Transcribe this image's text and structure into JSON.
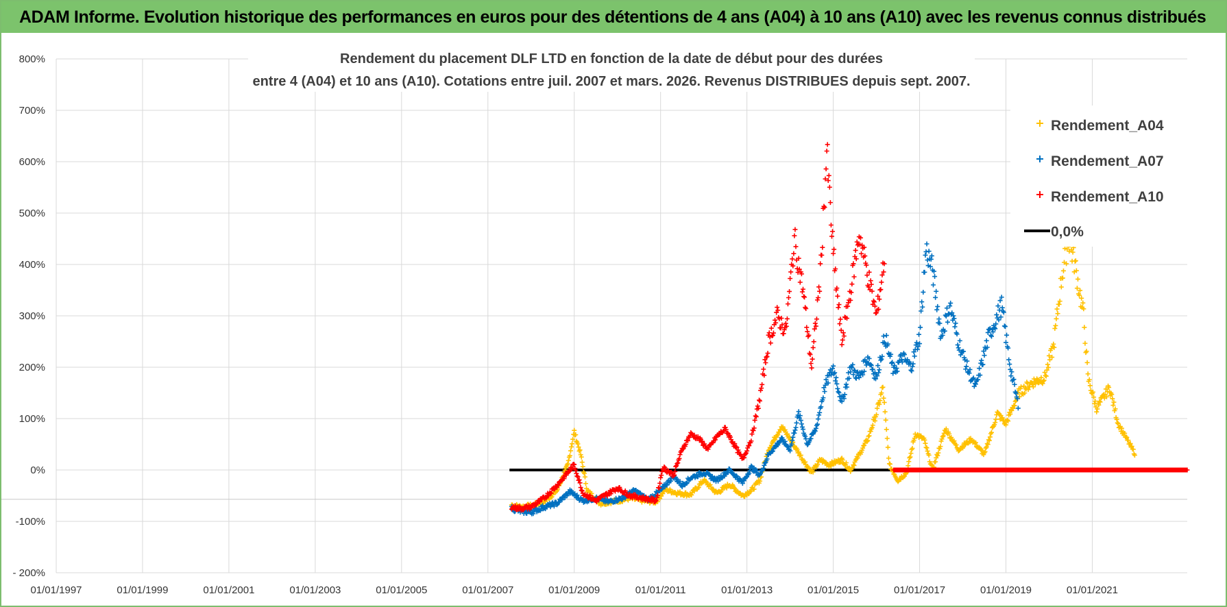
{
  "banner": {
    "text": "ADAM Informe. Evolution historique des performances en euros pour des détentions de 4 ans (A04) à 10 ans (A10) avec les revenus connus distribués"
  },
  "colors": {
    "banner_bg": "#7cc36c",
    "A04": "#ffc000",
    "A07": "#0070c0",
    "A10": "#ff0000",
    "zero": "#000000",
    "grid": "#d9d9d9"
  },
  "chart_data": {
    "type": "scatter",
    "title_line1": "Rendement du placement DLF LTD en fonction de la date de début pour des durées",
    "title_line2": "entre 4 (A04) et 10 ans (A10).  Cotations entre juil. 2007 et mars. 2026. Revenus DISTRIBUES depuis sept. 2007.",
    "y_ticks": [
      "800%",
      "700%",
      "600%",
      "500%",
      "400%",
      "300%",
      "200%",
      "100%",
      "0%",
      "-100%",
      "- 200%"
    ],
    "ylim": [
      -200,
      800
    ],
    "x_ticks": [
      "01/01/1997",
      "01/01/1999",
      "01/01/2001",
      "01/01/2003",
      "01/01/2005",
      "01/01/2007",
      "01/01/2009",
      "01/01/2011",
      "01/01/2013",
      "01/01/2015",
      "01/01/2017",
      "01/01/2019",
      "01/01/2021"
    ],
    "xlim": [
      1997.0,
      2023.2
    ],
    "legend_position": "top-right",
    "series": [
      {
        "name": "Rendement_A04",
        "points": [
          [
            2007.55,
            -68
          ],
          [
            2007.75,
            -72
          ],
          [
            2008.0,
            -70
          ],
          [
            2008.3,
            -62
          ],
          [
            2008.6,
            -40
          ],
          [
            2008.85,
            10
          ],
          [
            2009.0,
            75
          ],
          [
            2009.15,
            30
          ],
          [
            2009.3,
            -40
          ],
          [
            2009.6,
            -65
          ],
          [
            2010.0,
            -60
          ],
          [
            2010.3,
            -55
          ],
          [
            2010.6,
            -60
          ],
          [
            2010.9,
            -62
          ],
          [
            2011.1,
            -38
          ],
          [
            2011.4,
            -45
          ],
          [
            2011.7,
            -48
          ],
          [
            2012.0,
            -20
          ],
          [
            2012.3,
            -45
          ],
          [
            2012.6,
            -28
          ],
          [
            2012.9,
            -50
          ],
          [
            2013.1,
            -40
          ],
          [
            2013.3,
            -20
          ],
          [
            2013.5,
            40
          ],
          [
            2013.8,
            85
          ],
          [
            2014.0,
            60
          ],
          [
            2014.3,
            20
          ],
          [
            2014.5,
            -5
          ],
          [
            2014.7,
            20
          ],
          [
            2014.9,
            10
          ],
          [
            2015.2,
            20
          ],
          [
            2015.4,
            0
          ],
          [
            2015.6,
            30
          ],
          [
            2015.8,
            60
          ],
          [
            2016.0,
            110
          ],
          [
            2016.15,
            160
          ],
          [
            2016.3,
            10
          ],
          [
            2016.5,
            -20
          ],
          [
            2016.7,
            -5
          ],
          [
            2016.9,
            70
          ],
          [
            2017.1,
            60
          ],
          [
            2017.3,
            0
          ],
          [
            2017.6,
            80
          ],
          [
            2017.9,
            40
          ],
          [
            2018.2,
            60
          ],
          [
            2018.5,
            30
          ],
          [
            2018.8,
            110
          ],
          [
            2019.0,
            90
          ],
          [
            2019.3,
            150
          ],
          [
            2019.6,
            170
          ],
          [
            2019.9,
            180
          ],
          [
            2020.1,
            240
          ],
          [
            2020.3,
            380
          ],
          [
            2020.45,
            450
          ],
          [
            2020.6,
            400
          ],
          [
            2020.8,
            300
          ],
          [
            2020.9,
            180
          ],
          [
            2021.1,
            120
          ],
          [
            2021.4,
            160
          ],
          [
            2021.6,
            90
          ],
          [
            2021.8,
            60
          ],
          [
            2022.0,
            30
          ]
        ]
      },
      {
        "name": "Rendement_A07",
        "points": [
          [
            2007.55,
            -75
          ],
          [
            2007.75,
            -80
          ],
          [
            2008.0,
            -82
          ],
          [
            2008.3,
            -72
          ],
          [
            2008.6,
            -65
          ],
          [
            2008.9,
            -42
          ],
          [
            2009.2,
            -60
          ],
          [
            2009.5,
            -55
          ],
          [
            2009.8,
            -62
          ],
          [
            2010.1,
            -55
          ],
          [
            2010.4,
            -40
          ],
          [
            2010.7,
            -58
          ],
          [
            2011.0,
            -40
          ],
          [
            2011.3,
            -12
          ],
          [
            2011.5,
            -30
          ],
          [
            2011.7,
            -15
          ],
          [
            2012.0,
            -5
          ],
          [
            2012.3,
            -20
          ],
          [
            2012.6,
            0
          ],
          [
            2012.9,
            -25
          ],
          [
            2013.1,
            5
          ],
          [
            2013.3,
            -10
          ],
          [
            2013.5,
            30
          ],
          [
            2013.8,
            60
          ],
          [
            2014.0,
            40
          ],
          [
            2014.2,
            110
          ],
          [
            2014.4,
            50
          ],
          [
            2014.6,
            80
          ],
          [
            2014.8,
            160
          ],
          [
            2015.0,
            200
          ],
          [
            2015.2,
            130
          ],
          [
            2015.4,
            200
          ],
          [
            2015.6,
            180
          ],
          [
            2015.8,
            220
          ],
          [
            2016.0,
            180
          ],
          [
            2016.2,
            260
          ],
          [
            2016.4,
            190
          ],
          [
            2016.6,
            220
          ],
          [
            2016.8,
            200
          ],
          [
            2017.0,
            260
          ],
          [
            2017.15,
            430
          ],
          [
            2017.3,
            390
          ],
          [
            2017.5,
            260
          ],
          [
            2017.7,
            320
          ],
          [
            2017.9,
            250
          ],
          [
            2018.1,
            200
          ],
          [
            2018.3,
            160
          ],
          [
            2018.6,
            260
          ],
          [
            2018.9,
            320
          ],
          [
            2019.1,
            200
          ],
          [
            2019.3,
            120
          ]
        ]
      },
      {
        "name": "Rendement_A10",
        "points": [
          [
            2007.55,
            -72
          ],
          [
            2007.75,
            -75
          ],
          [
            2008.0,
            -72
          ],
          [
            2008.3,
            -55
          ],
          [
            2008.6,
            -30
          ],
          [
            2008.8,
            -10
          ],
          [
            2009.0,
            10
          ],
          [
            2009.2,
            -45
          ],
          [
            2009.5,
            -60
          ],
          [
            2009.8,
            -45
          ],
          [
            2010.0,
            -35
          ],
          [
            2010.3,
            -50
          ],
          [
            2010.6,
            -55
          ],
          [
            2010.9,
            -60
          ],
          [
            2011.05,
            5
          ],
          [
            2011.3,
            -10
          ],
          [
            2011.5,
            40
          ],
          [
            2011.7,
            70
          ],
          [
            2011.9,
            60
          ],
          [
            2012.1,
            40
          ],
          [
            2012.3,
            65
          ],
          [
            2012.5,
            80
          ],
          [
            2012.7,
            50
          ],
          [
            2012.9,
            20
          ],
          [
            2013.1,
            60
          ],
          [
            2013.3,
            140
          ],
          [
            2013.5,
            250
          ],
          [
            2013.7,
            300
          ],
          [
            2013.9,
            270
          ],
          [
            2014.1,
            450
          ],
          [
            2014.3,
            350
          ],
          [
            2014.5,
            200
          ],
          [
            2014.7,
            380
          ],
          [
            2014.85,
            620
          ],
          [
            2015.0,
            420
          ],
          [
            2015.2,
            250
          ],
          [
            2015.4,
            350
          ],
          [
            2015.6,
            460
          ],
          [
            2015.8,
            380
          ],
          [
            2016.0,
            300
          ],
          [
            2016.2,
            420
          ]
        ]
      }
    ],
    "flat_segments": [
      {
        "series": "Rendement_A10",
        "x_from": 2016.4,
        "x_to": 2023.2,
        "y": 0
      }
    ],
    "reference_lines": [
      {
        "name": "0,0%",
        "x_from": 2007.5,
        "x_to": 2016.4,
        "y": 0
      }
    ],
    "legend": [
      "Rendement_A04",
      "Rendement_A07",
      "Rendement_A10",
      "0,0%"
    ]
  }
}
